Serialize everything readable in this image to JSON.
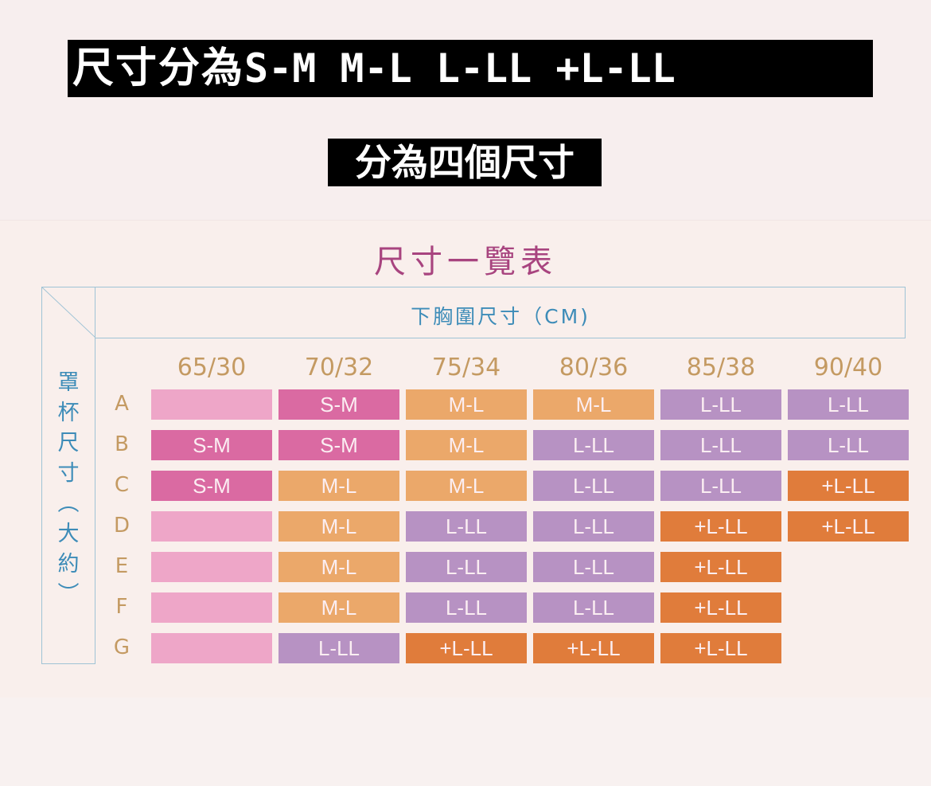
{
  "banner": {
    "line1_cn": "尺寸分為",
    "line1_sizes": "S-M M-L L-LL +L-LL",
    "line2": "分為四個尺寸"
  },
  "table": {
    "title": "尺寸一覽表",
    "column_header_label": "下胸圍尺寸（CM)",
    "row_header_label": [
      "罩",
      "杯",
      "尺",
      "寸",
      "︵",
      "大",
      "約",
      "︶"
    ],
    "columns": [
      "65/30",
      "70/32",
      "75/34",
      "80/36",
      "85/38",
      "90/40"
    ],
    "rows": [
      {
        "cup": "A",
        "cells": [
          "",
          "S-M",
          "M-L",
          "M-L",
          "L-LL",
          "L-LL"
        ]
      },
      {
        "cup": "B",
        "cells": [
          "S-M",
          "S-M",
          "M-L",
          "L-LL",
          "L-LL",
          "L-LL"
        ]
      },
      {
        "cup": "C",
        "cells": [
          "S-M",
          "M-L",
          "M-L",
          "L-LL",
          "L-LL",
          "+L-LL"
        ]
      },
      {
        "cup": "D",
        "cells": [
          "",
          "M-L",
          "L-LL",
          "L-LL",
          "+L-LL",
          "+L-LL"
        ]
      },
      {
        "cup": "E",
        "cells": [
          "",
          "M-L",
          "L-LL",
          "L-LL",
          "+L-LL",
          null
        ]
      },
      {
        "cup": "F",
        "cells": [
          "",
          "M-L",
          "L-LL",
          "L-LL",
          "+L-LL",
          null
        ]
      },
      {
        "cup": "G",
        "cells": [
          "",
          "L-LL",
          "+L-LL",
          "+L-LL",
          "+L-LL",
          null
        ]
      }
    ],
    "size_colors": {
      "none": "#eea6c8",
      "S-M": "#da6aa2",
      "M-L": "#eba86a",
      "L-LL": "#b792c3",
      "+L-LL": "#e07c3b"
    }
  }
}
